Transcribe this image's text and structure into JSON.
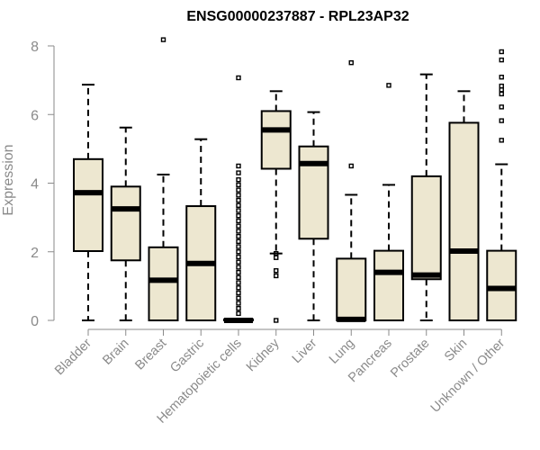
{
  "chart_data": {
    "type": "boxplot",
    "title": "ENSG00000237887 - RPL23AP32",
    "xlabel": "",
    "ylabel": "Expression",
    "ylim": [
      0,
      8
    ],
    "yticks": [
      0,
      2,
      4,
      6,
      8
    ],
    "categories": [
      "Bladder",
      "Brain",
      "Breast",
      "Gastric",
      "Hematopoietic cells",
      "Kidney",
      "Liver",
      "Lung",
      "Pancreas",
      "Prostate",
      "Skin",
      "Unknown / Other"
    ],
    "colors": {
      "box_fill": "#ede7d0",
      "box_stroke": "#000000",
      "axis": "#8a8a8a"
    },
    "boxes": [
      {
        "category": "Bladder",
        "whisker_low": 0,
        "q1": 2.02,
        "median": 3.72,
        "q3": 4.7,
        "whisker_high": 6.87,
        "outliers": []
      },
      {
        "category": "Brain",
        "whisker_low": 0,
        "q1": 1.75,
        "median": 3.25,
        "q3": 3.9,
        "whisker_high": 5.62,
        "outliers": []
      },
      {
        "category": "Breast",
        "whisker_low": 0,
        "q1": 0,
        "median": 1.17,
        "q3": 2.13,
        "whisker_high": 4.25,
        "outliers": [
          8.18
        ]
      },
      {
        "category": "Gastric",
        "whisker_low": 0,
        "q1": 0,
        "median": 1.66,
        "q3": 3.33,
        "whisker_high": 5.28,
        "outliers": []
      },
      {
        "category": "Hematopoietic cells",
        "whisker_low": 0,
        "q1": 0,
        "median": 0,
        "q3": 0.03,
        "whisker_high": 0.05,
        "outliers": [
          7.07,
          4.5,
          4.3,
          4.1,
          3.95,
          3.8,
          3.65,
          3.5,
          3.35,
          3.2,
          3.05,
          2.9,
          2.75,
          2.6,
          2.45,
          2.3,
          2.15,
          2.0,
          1.85,
          1.7,
          1.55,
          1.4,
          1.25,
          1.1,
          0.95,
          0.8,
          0.65,
          0.5,
          0.35,
          0.2
        ]
      },
      {
        "category": "Kidney",
        "whisker_low": 1.95,
        "q1": 4.42,
        "median": 5.55,
        "q3": 6.1,
        "whisker_high": 6.68,
        "outliers": [
          1.95,
          1.83,
          1.45,
          1.3,
          0
        ]
      },
      {
        "category": "Liver",
        "whisker_low": 0,
        "q1": 2.38,
        "median": 4.57,
        "q3": 5.07,
        "whisker_high": 6.07,
        "outliers": []
      },
      {
        "category": "Lung",
        "whisker_low": 0,
        "q1": 0,
        "median": 0.03,
        "q3": 1.8,
        "whisker_high": 3.66,
        "outliers": [
          4.5,
          7.51
        ]
      },
      {
        "category": "Pancreas",
        "whisker_low": 0,
        "q1": 0,
        "median": 1.4,
        "q3": 2.03,
        "whisker_high": 3.95,
        "outliers": [
          6.85
        ]
      },
      {
        "category": "Prostate",
        "whisker_low": 0,
        "q1": 1.2,
        "median": 1.32,
        "q3": 4.2,
        "whisker_high": 7.17,
        "outliers": []
      },
      {
        "category": "Skin",
        "whisker_low": 0,
        "q1": 0,
        "median": 2.02,
        "q3": 5.76,
        "whisker_high": 6.68,
        "outliers": []
      },
      {
        "category": "Unknown / Other",
        "whisker_low": 0,
        "q1": 0,
        "median": 0.93,
        "q3": 2.03,
        "whisker_high": 4.55,
        "outliers": [
          5.25,
          5.82,
          6.22,
          6.6,
          6.72,
          6.83,
          7.09,
          7.59,
          7.83
        ]
      }
    ]
  }
}
